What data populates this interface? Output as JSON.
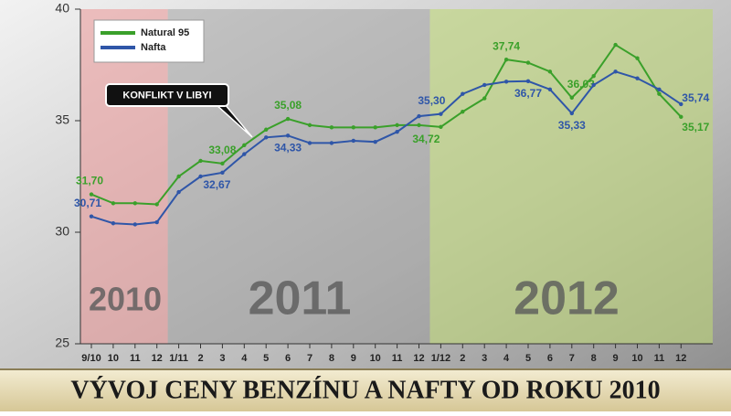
{
  "chart_data": {
    "type": "line",
    "title": "VÝVOJ CENY BENZÍNU A NAFTY OD ROKU 2010",
    "categories": [
      "9/10",
      "10",
      "11",
      "12",
      "1/11",
      "2",
      "3",
      "4",
      "5",
      "6",
      "7",
      "8",
      "9",
      "10",
      "11",
      "12",
      "1/12",
      "2",
      "3",
      "4",
      "5",
      "6",
      "7",
      "8",
      "9",
      "10",
      "11",
      "12"
    ],
    "series": [
      {
        "name": "Natural 95",
        "color": "#3aa02a",
        "values": [
          31.7,
          31.3,
          31.3,
          31.25,
          32.5,
          33.2,
          33.08,
          33.9,
          34.6,
          35.08,
          34.8,
          34.7,
          34.7,
          34.7,
          34.8,
          34.8,
          34.72,
          35.4,
          36.0,
          37.74,
          37.6,
          37.2,
          36.03,
          37.0,
          38.4,
          37.8,
          36.2,
          35.17
        ],
        "value_labels": [
          "31,70",
          null,
          null,
          null,
          null,
          null,
          "33,08",
          null,
          null,
          "35,08",
          null,
          null,
          null,
          null,
          null,
          null,
          "34,72",
          null,
          null,
          "37,74",
          null,
          null,
          "36,03",
          null,
          null,
          null,
          null,
          "35,17"
        ]
      },
      {
        "name": "Nafta",
        "color": "#2f56a8",
        "values": [
          30.71,
          30.4,
          30.35,
          30.45,
          31.8,
          32.5,
          32.67,
          33.5,
          34.25,
          34.33,
          34.0,
          34.0,
          34.1,
          34.05,
          34.5,
          35.2,
          35.3,
          36.2,
          36.6,
          36.75,
          36.77,
          36.4,
          35.33,
          36.6,
          37.2,
          36.9,
          36.4,
          35.74
        ],
        "value_labels": [
          "30,71",
          null,
          null,
          null,
          null,
          null,
          "32,67",
          null,
          null,
          "34,33",
          null,
          null,
          null,
          null,
          null,
          null,
          "35,30",
          null,
          null,
          null,
          "36,77",
          null,
          "35,33",
          null,
          null,
          null,
          null,
          "35,74"
        ]
      }
    ],
    "ylim": [
      25,
      40
    ],
    "yticks": [
      25,
      30,
      35,
      40
    ],
    "periods": [
      "2010",
      "2011",
      "2012"
    ],
    "annotation": "KONFLIKT V LIBYI",
    "legend": "top-left"
  }
}
